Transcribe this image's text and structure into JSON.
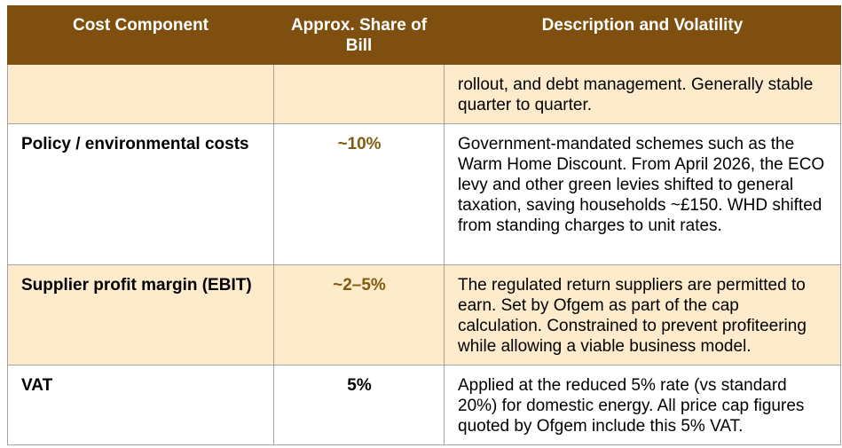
{
  "headers": {
    "component": "Cost Component",
    "share": "Approx. Share of Bill",
    "description": "Description and Volatility"
  },
  "rows": [
    {
      "component": "",
      "share": "",
      "description": "rollout, and debt management. Generally stable quarter to quarter."
    },
    {
      "component": "Policy / environmental costs",
      "share": "~10%",
      "description": "Government-mandated schemes such as the Warm Home Discount. From April 2026, the ECO levy and other green levies shifted to general taxation, saving households ~£150. WHD shifted from standing charges to unit rates."
    },
    {
      "component": "Supplier profit margin (EBIT)",
      "share": "~2–5%",
      "description": "The regulated return suppliers are permitted to earn. Set by Ofgem as part of the cap calculation. Constrained to prevent profiteering while allowing a viable business model."
    },
    {
      "component": "VAT",
      "share": "5%",
      "description": "Applied at the reduced 5% rate (vs standard 20%) for domestic energy. All price cap figures quoted by Ofgem include this 5% VAT."
    }
  ],
  "colors": {
    "header_bg": "#7f4f10",
    "shaded_row_bg": "#fdebcc",
    "share_accent": "#7f5c10"
  }
}
